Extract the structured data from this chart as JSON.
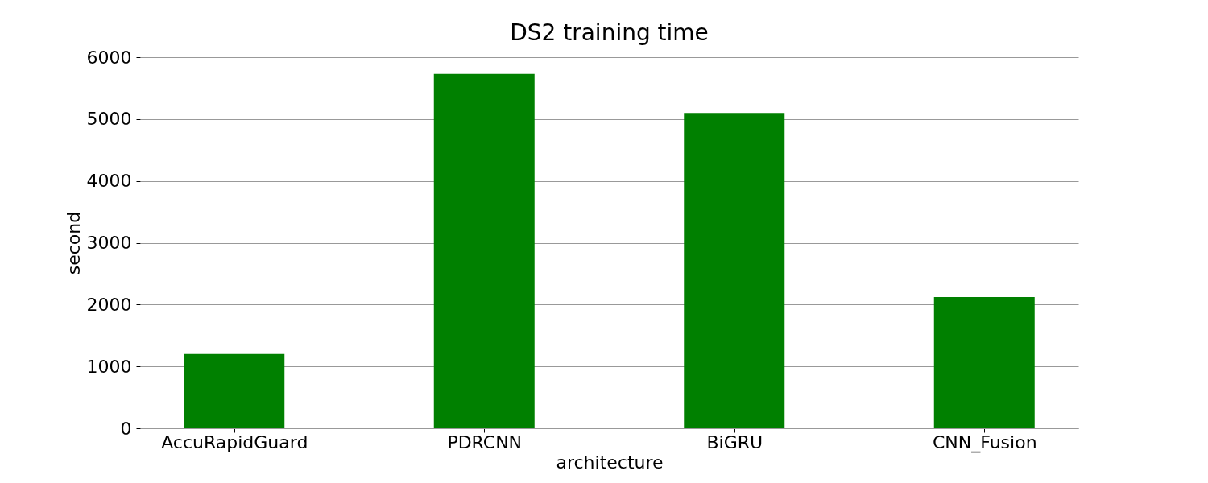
{
  "chart_data": {
    "type": "bar",
    "title": "DS2 training time",
    "xlabel": "architecture",
    "ylabel": "second",
    "categories": [
      "AccuRapidGuard",
      "PDRCNN",
      "BiGRU",
      "CNN_Fusion"
    ],
    "values": [
      1200,
      5730,
      5100,
      2120
    ],
    "color": "#008000",
    "ylim": [
      0,
      6000
    ],
    "yticks": [
      0,
      1000,
      2000,
      3000,
      4000,
      5000,
      6000
    ],
    "grid": "y"
  }
}
